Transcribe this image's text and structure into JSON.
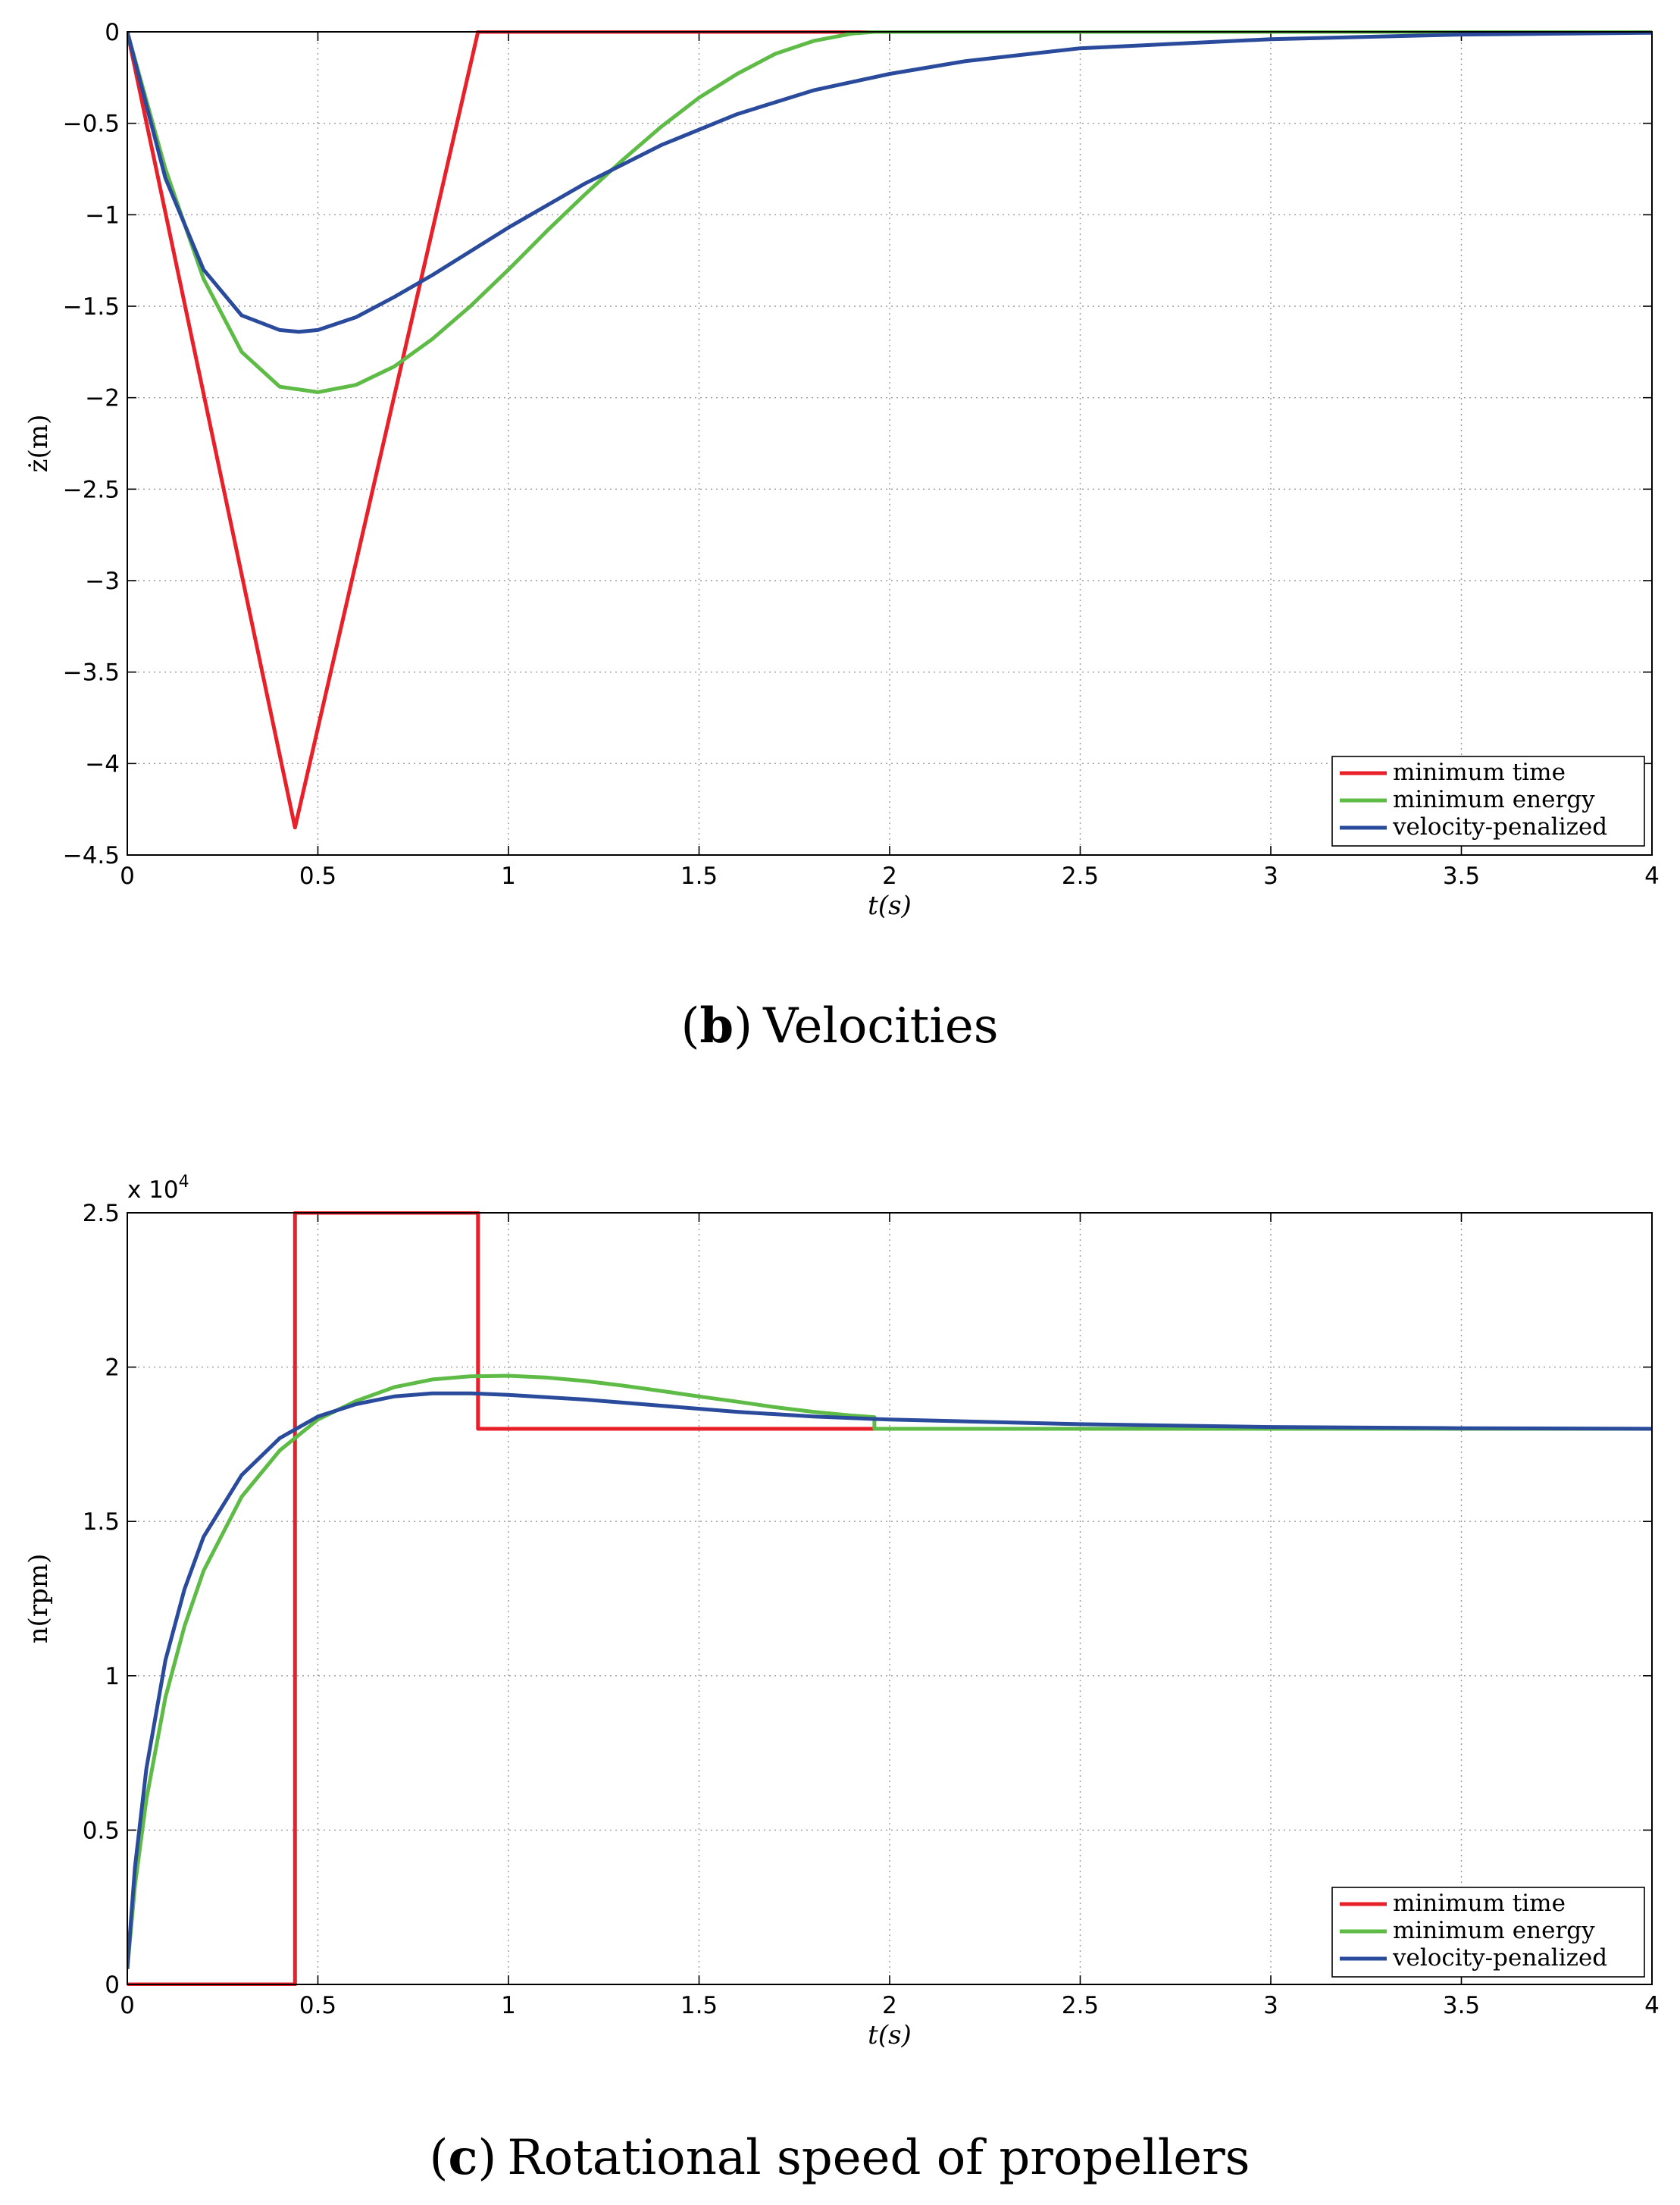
{
  "captions": [
    {
      "letter": "b",
      "open": "(",
      "close": ")",
      "title": "Velocities"
    },
    {
      "letter": "c",
      "open": "(",
      "close": ")",
      "title": "Rotational speed of propellers"
    }
  ],
  "chart_data": [
    {
      "type": "line",
      "xlabel": "t(s)",
      "ylabel": "ż(m)",
      "xlim": [
        0,
        4
      ],
      "ylim": [
        -4.5,
        0
      ],
      "xticks": [
        "0",
        "0.5",
        "1",
        "1.5",
        "2",
        "2.5",
        "3",
        "3.5",
        "4"
      ],
      "yticks": [
        "0",
        "−0.5",
        "−1",
        "−1.5",
        "−2",
        "−2.5",
        "−3",
        "−3.5",
        "−4",
        "−4.5"
      ],
      "exponent_label": "",
      "grid": true,
      "legend": "bottom-right",
      "series": [
        {
          "name": "minimum time",
          "color": "#e8202a",
          "x": [
            0,
            0.44,
            0.92,
            4
          ],
          "y": [
            0,
            -4.35,
            0,
            0
          ]
        },
        {
          "name": "minimum energy",
          "color": "#5dbb46",
          "x": [
            0,
            0.1,
            0.2,
            0.3,
            0.4,
            0.5,
            0.6,
            0.7,
            0.8,
            0.9,
            1.0,
            1.1,
            1.2,
            1.3,
            1.4,
            1.5,
            1.6,
            1.7,
            1.8,
            1.9,
            1.96,
            2.5,
            3,
            3.5,
            4
          ],
          "y": [
            0,
            -0.75,
            -1.35,
            -1.75,
            -1.94,
            -1.97,
            -1.93,
            -1.83,
            -1.68,
            -1.5,
            -1.3,
            -1.09,
            -0.89,
            -0.7,
            -0.52,
            -0.36,
            -0.23,
            -0.12,
            -0.05,
            -0.01,
            0,
            0,
            0,
            0,
            0
          ]
        },
        {
          "name": "velocity-penalized",
          "color": "#2a4a9c",
          "x": [
            0,
            0.1,
            0.2,
            0.3,
            0.4,
            0.45,
            0.5,
            0.6,
            0.7,
            0.8,
            0.9,
            1.0,
            1.2,
            1.4,
            1.6,
            1.8,
            2.0,
            2.2,
            2.5,
            3.0,
            3.5,
            4
          ],
          "y": [
            0,
            -0.8,
            -1.3,
            -1.55,
            -1.63,
            -1.64,
            -1.63,
            -1.56,
            -1.45,
            -1.33,
            -1.2,
            -1.07,
            -0.83,
            -0.62,
            -0.45,
            -0.32,
            -0.23,
            -0.16,
            -0.09,
            -0.04,
            -0.015,
            -0.005
          ]
        }
      ]
    },
    {
      "type": "line",
      "xlabel": "t(s)",
      "ylabel": "n(rpm)",
      "xlim": [
        0,
        4
      ],
      "ylim": [
        0,
        25000
      ],
      "xticks": [
        "0",
        "0.5",
        "1",
        "1.5",
        "2",
        "2.5",
        "3",
        "3.5",
        "4"
      ],
      "yticks": [
        "0",
        "0.5",
        "1",
        "1.5",
        "2",
        "2.5"
      ],
      "exponent_label": "x 10",
      "exponent_power": "4",
      "grid": true,
      "legend": "bottom-right",
      "series": [
        {
          "name": "minimum time",
          "color": "#e8202a",
          "x": [
            0,
            0.44,
            0.44,
            0.92,
            0.92,
            1.96,
            4
          ],
          "y": [
            0,
            0,
            25000,
            25000,
            18000,
            18000,
            18000
          ]
        },
        {
          "name": "minimum energy",
          "color": "#5dbb46",
          "x": [
            0,
            0.02,
            0.05,
            0.1,
            0.15,
            0.2,
            0.3,
            0.4,
            0.5,
            0.6,
            0.7,
            0.8,
            0.9,
            1.0,
            1.1,
            1.2,
            1.3,
            1.4,
            1.5,
            1.6,
            1.7,
            1.8,
            1.9,
            1.96,
            1.96,
            2.5,
            3,
            3.5,
            4
          ],
          "y": [
            500,
            3200,
            6000,
            9300,
            11600,
            13400,
            15800,
            17300,
            18300,
            18900,
            19350,
            19600,
            19700,
            19720,
            19660,
            19550,
            19400,
            19230,
            19050,
            18880,
            18700,
            18550,
            18430,
            18380,
            18000,
            18000,
            18000,
            18000,
            18000
          ]
        },
        {
          "name": "velocity-penalized",
          "color": "#2a4a9c",
          "x": [
            0,
            0.02,
            0.05,
            0.1,
            0.15,
            0.2,
            0.3,
            0.4,
            0.5,
            0.6,
            0.7,
            0.8,
            0.9,
            1.0,
            1.2,
            1.4,
            1.6,
            1.8,
            2.0,
            2.5,
            3.0,
            3.5,
            4
          ],
          "y": [
            500,
            3800,
            7000,
            10500,
            12800,
            14500,
            16500,
            17700,
            18400,
            18800,
            19050,
            19150,
            19150,
            19100,
            18950,
            18750,
            18550,
            18400,
            18300,
            18150,
            18060,
            18020,
            18000
          ]
        }
      ]
    }
  ]
}
